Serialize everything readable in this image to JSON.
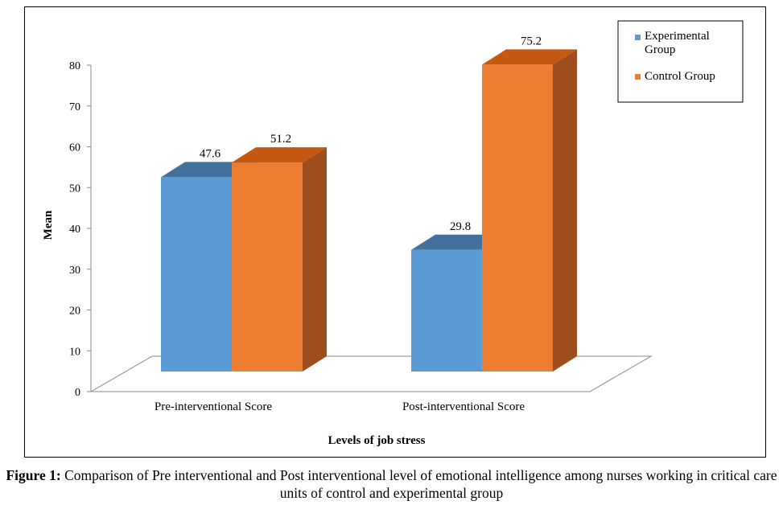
{
  "chart_data": {
    "type": "bar",
    "style": "3d-clustered-column",
    "categories": [
      "Pre-interventional Score",
      "Post-interventional Score"
    ],
    "series": [
      {
        "name": "Experimental Group",
        "color": "#5b9bd5",
        "top_color": "#41719c",
        "values": [
          47.6,
          29.8
        ],
        "data_labels": [
          "47.6",
          "29.8"
        ]
      },
      {
        "name": "Control Group",
        "color": "#ed7d31",
        "top_color": "#c65911",
        "side_color": "#9e4d1d",
        "values": [
          51.2,
          75.2
        ],
        "data_labels": [
          "51.2",
          "75.2"
        ]
      }
    ],
    "ylim": [
      0,
      80
    ],
    "yticks": [
      "0",
      "10",
      "20",
      "30",
      "40",
      "50",
      "60",
      "70",
      "80"
    ],
    "ytick_values": [
      0,
      10,
      20,
      30,
      40,
      50,
      60,
      70,
      80
    ],
    "xlabel": "Levels of job stress",
    "ylabel": "Mean",
    "legend": {
      "position": "top-right",
      "labels": [
        "Experimental Group",
        "Control Group"
      ]
    },
    "grid": false
  },
  "caption": {
    "label": "Figure 1:",
    "text": "Comparison of Pre interventional and Post interventional level of emotional intelligence among nurses working in critical care units of control and experimental group"
  }
}
